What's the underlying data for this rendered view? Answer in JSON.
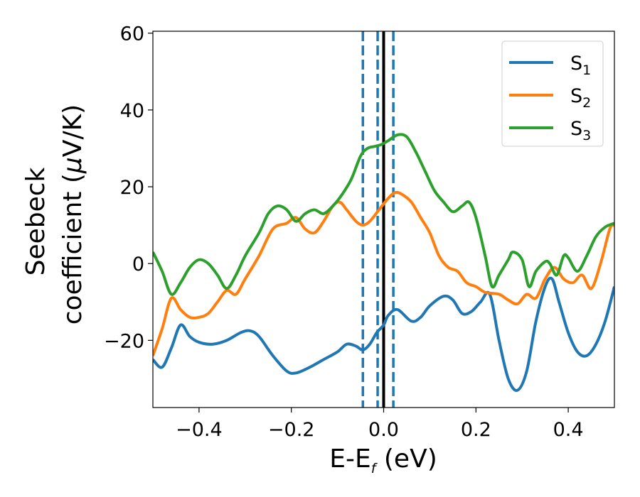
{
  "chart_data": {
    "type": "line",
    "xlabel": {
      "main": "E-E",
      "sub": "f",
      "unit": " (eV)"
    },
    "ylabel": {
      "line1": "Seebeck",
      "line2": "coefficient  (",
      "mu": "μ",
      "unit": "V/K)"
    },
    "xlim": [
      -0.5,
      0.5
    ],
    "ylim": [
      -37.5,
      60.5
    ],
    "xticks": [
      -0.4,
      -0.2,
      0.0,
      0.2,
      0.4
    ],
    "xtick_labels": [
      "−0.4",
      "−0.2",
      "0.0",
      "0.2",
      "0.4"
    ],
    "yticks": [
      -20,
      0,
      20,
      40,
      60
    ],
    "ytick_labels": [
      "−20",
      "0",
      "20",
      "40",
      "60"
    ],
    "grid": false,
    "legend_position": "top-right",
    "vlines": [
      {
        "x": 0.0,
        "style": "solid",
        "color": "#000000"
      },
      {
        "x": -0.045,
        "style": "dashed",
        "color": "#1f77b4"
      },
      {
        "x": -0.013,
        "style": "dashed",
        "color": "#1f77b4"
      },
      {
        "x": 0.021,
        "style": "dashed",
        "color": "#1f77b4"
      }
    ],
    "series": [
      {
        "legend": {
          "main": "S",
          "sub": "1"
        },
        "color": "#1f77b4",
        "points": [
          [
            -0.5,
            -25
          ],
          [
            -0.48,
            -27
          ],
          [
            -0.46,
            -22
          ],
          [
            -0.44,
            -16
          ],
          [
            -0.42,
            -19
          ],
          [
            -0.4,
            -20.5
          ],
          [
            -0.37,
            -21
          ],
          [
            -0.34,
            -20
          ],
          [
            -0.31,
            -18
          ],
          [
            -0.29,
            -17.5
          ],
          [
            -0.27,
            -19
          ],
          [
            -0.24,
            -24
          ],
          [
            -0.21,
            -28
          ],
          [
            -0.19,
            -28.5
          ],
          [
            -0.16,
            -27
          ],
          [
            -0.13,
            -25
          ],
          [
            -0.1,
            -23
          ],
          [
            -0.08,
            -21
          ],
          [
            -0.06,
            -21.5
          ],
          [
            -0.045,
            -22.5
          ],
          [
            -0.03,
            -21
          ],
          [
            -0.015,
            -18
          ],
          [
            0.0,
            -16
          ],
          [
            0.01,
            -13.5
          ],
          [
            0.03,
            -12
          ],
          [
            0.06,
            -15
          ],
          [
            0.08,
            -14
          ],
          [
            0.1,
            -11
          ],
          [
            0.13,
            -8.5
          ],
          [
            0.15,
            -9.5
          ],
          [
            0.17,
            -13
          ],
          [
            0.19,
            -12.5
          ],
          [
            0.21,
            -10
          ],
          [
            0.23,
            -8
          ],
          [
            0.25,
            -20
          ],
          [
            0.27,
            -30
          ],
          [
            0.29,
            -33
          ],
          [
            0.31,
            -28
          ],
          [
            0.33,
            -15
          ],
          [
            0.35,
            -6
          ],
          [
            0.365,
            -4
          ],
          [
            0.38,
            -10
          ],
          [
            0.4,
            -18
          ],
          [
            0.42,
            -23
          ],
          [
            0.44,
            -24
          ],
          [
            0.46,
            -21
          ],
          [
            0.48,
            -15
          ],
          [
            0.5,
            -6
          ]
        ]
      },
      {
        "legend": {
          "main": "S",
          "sub": "2"
        },
        "color": "#ff7f0e",
        "points": [
          [
            -0.5,
            -24
          ],
          [
            -0.48,
            -17
          ],
          [
            -0.46,
            -9
          ],
          [
            -0.44,
            -12
          ],
          [
            -0.42,
            -14
          ],
          [
            -0.4,
            -14
          ],
          [
            -0.38,
            -13
          ],
          [
            -0.36,
            -10
          ],
          [
            -0.34,
            -7
          ],
          [
            -0.32,
            -8
          ],
          [
            -0.3,
            -4
          ],
          [
            -0.27,
            2
          ],
          [
            -0.24,
            9
          ],
          [
            -0.21,
            10.5
          ],
          [
            -0.19,
            12
          ],
          [
            -0.17,
            9
          ],
          [
            -0.15,
            8
          ],
          [
            -0.13,
            11
          ],
          [
            -0.11,
            15
          ],
          [
            -0.095,
            16
          ],
          [
            -0.08,
            14
          ],
          [
            -0.06,
            11
          ],
          [
            -0.045,
            10
          ],
          [
            -0.03,
            11
          ],
          [
            -0.01,
            14
          ],
          [
            0.01,
            17
          ],
          [
            0.025,
            18.5
          ],
          [
            0.04,
            18
          ],
          [
            0.06,
            16
          ],
          [
            0.08,
            12
          ],
          [
            0.1,
            8
          ],
          [
            0.12,
            2
          ],
          [
            0.14,
            -1
          ],
          [
            0.16,
            -2
          ],
          [
            0.18,
            -5
          ],
          [
            0.2,
            -6
          ],
          [
            0.22,
            -7.5
          ],
          [
            0.25,
            -8
          ],
          [
            0.27,
            -9.5
          ],
          [
            0.29,
            -10.5
          ],
          [
            0.31,
            -8
          ],
          [
            0.33,
            -9
          ],
          [
            0.35,
            -4
          ],
          [
            0.37,
            -1
          ],
          [
            0.39,
            -4
          ],
          [
            0.41,
            -5
          ],
          [
            0.43,
            -3
          ],
          [
            0.45,
            -6.5
          ],
          [
            0.47,
            0
          ],
          [
            0.49,
            9
          ],
          [
            0.5,
            10
          ]
        ]
      },
      {
        "legend": {
          "main": "S",
          "sub": "3"
        },
        "color": "#2ca02c",
        "points": [
          [
            -0.5,
            3
          ],
          [
            -0.48,
            -2
          ],
          [
            -0.46,
            -8
          ],
          [
            -0.44,
            -5
          ],
          [
            -0.42,
            -1
          ],
          [
            -0.4,
            1
          ],
          [
            -0.38,
            0
          ],
          [
            -0.36,
            -3
          ],
          [
            -0.34,
            -6.5
          ],
          [
            -0.32,
            -3
          ],
          [
            -0.3,
            2
          ],
          [
            -0.27,
            8
          ],
          [
            -0.25,
            13
          ],
          [
            -0.23,
            15
          ],
          [
            -0.21,
            14
          ],
          [
            -0.19,
            11
          ],
          [
            -0.17,
            13
          ],
          [
            -0.15,
            14
          ],
          [
            -0.13,
            13
          ],
          [
            -0.11,
            15
          ],
          [
            -0.09,
            18
          ],
          [
            -0.07,
            22
          ],
          [
            -0.05,
            28
          ],
          [
            -0.035,
            30
          ],
          [
            -0.02,
            30.5
          ],
          [
            -0.005,
            31
          ],
          [
            0.01,
            32
          ],
          [
            0.03,
            33.5
          ],
          [
            0.05,
            33
          ],
          [
            0.07,
            29
          ],
          [
            0.09,
            24
          ],
          [
            0.11,
            19
          ],
          [
            0.13,
            16
          ],
          [
            0.15,
            13.5
          ],
          [
            0.17,
            15
          ],
          [
            0.185,
            16
          ],
          [
            0.2,
            12
          ],
          [
            0.22,
            2
          ],
          [
            0.235,
            -6
          ],
          [
            0.25,
            -3
          ],
          [
            0.27,
            1
          ],
          [
            0.28,
            3
          ],
          [
            0.3,
            1
          ],
          [
            0.315,
            -6
          ],
          [
            0.33,
            -2
          ],
          [
            0.35,
            0.5
          ],
          [
            0.36,
            0
          ],
          [
            0.375,
            -3
          ],
          [
            0.39,
            2
          ],
          [
            0.4,
            1.5
          ],
          [
            0.42,
            -2
          ],
          [
            0.44,
            2
          ],
          [
            0.46,
            7
          ],
          [
            0.48,
            9.5
          ],
          [
            0.5,
            10.5
          ]
        ]
      }
    ]
  }
}
